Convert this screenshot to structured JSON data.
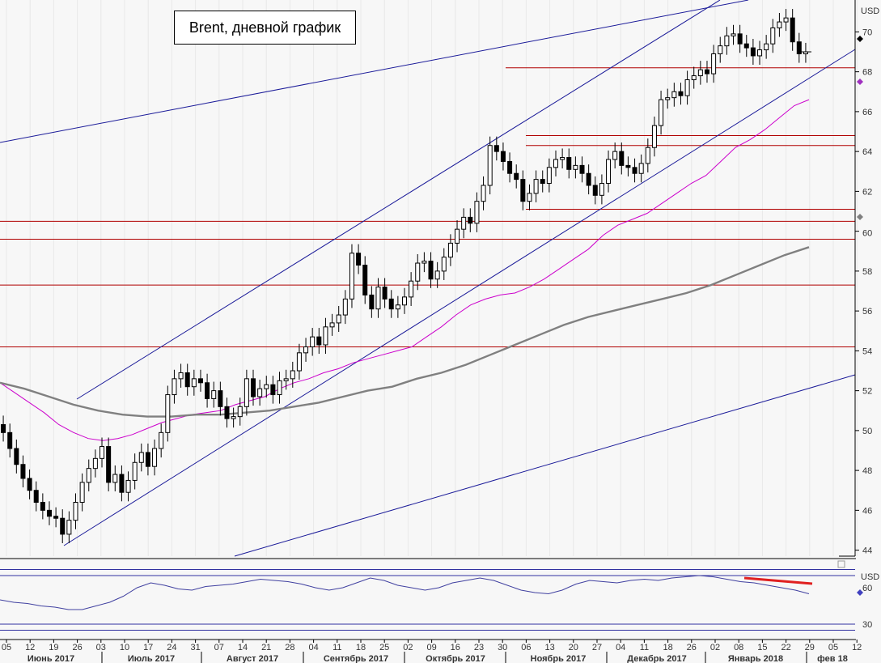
{
  "title": "Brent, дневной график",
  "currency_label": "USD",
  "rsi_currency_label": "USD",
  "chart_data": [
    {
      "type": "candlestick",
      "title": "Brent, дневной график",
      "ylabel": "USD",
      "ylim": [
        43.7,
        71.6
      ],
      "yticks": [
        44,
        46,
        48,
        50,
        52,
        54,
        56,
        58,
        60,
        62,
        64,
        66,
        68,
        70
      ],
      "highlighted_tick": 60,
      "current_price": 69.0,
      "x_range": [
        "2017-06-05",
        "2018-02-14"
      ],
      "day_ticks": [
        "05",
        "12",
        "19",
        "26",
        "03",
        "10",
        "17",
        "24",
        "31",
        "07",
        "14",
        "21",
        "28",
        "04",
        "11",
        "18",
        "25",
        "02",
        "09",
        "16",
        "23",
        "30",
        "06",
        "13",
        "20",
        "27",
        "04",
        "11",
        "18",
        "26",
        "02",
        "08",
        "15",
        "22",
        "29",
        "05",
        "12"
      ],
      "months": [
        "Июнь 2017",
        "Июль 2017",
        "Август 2017",
        "Сентябрь 2017",
        "Октябрь 2017",
        "Ноябрь 2017",
        "Декабрь 2017",
        "Январь 2018",
        "фев 18"
      ],
      "series": [
        {
          "name": "",
          "kind": "close",
          "values": [
            49.9,
            49.1,
            48.3,
            47.6,
            47.0,
            46.4,
            46.0,
            45.7,
            45.6,
            44.8,
            45.5,
            46.4,
            47.4,
            48.1,
            48.6,
            49.2,
            47.4,
            47.8,
            46.9,
            47.5,
            48.4,
            48.9,
            48.2,
            49.1,
            49.9,
            51.8,
            52.6,
            52.9,
            52.2,
            52.6,
            52.4,
            51.6,
            52.0,
            51.2,
            50.6,
            50.7,
            51.2,
            52.6,
            51.7,
            52.1,
            52.3,
            51.8,
            52.5,
            52.6,
            53.0,
            53.9,
            54.2,
            54.7,
            54.3,
            55.2,
            55.4,
            55.8,
            56.6,
            58.9,
            58.3,
            56.8,
            56.1,
            57.2,
            56.6,
            56.1,
            56.3,
            56.7,
            57.5,
            58.4,
            58.5,
            57.6,
            58.0,
            58.7,
            59.4,
            60.1,
            60.7,
            60.4,
            61.5,
            62.3,
            64.3,
            64.0,
            63.5,
            62.9,
            62.6,
            61.5,
            61.9,
            62.6,
            62.4,
            63.2,
            63.6,
            63.7,
            63.1,
            63.3,
            62.9,
            62.3,
            61.8,
            62.4,
            63.6,
            64.0,
            63.3,
            63.2,
            62.9,
            63.4,
            64.2,
            65.3,
            66.6,
            66.7,
            67.0,
            66.8,
            67.6,
            67.8,
            68.1,
            67.9,
            68.9,
            69.3,
            69.8,
            69.9,
            69.4,
            69.2,
            68.8,
            69.1,
            69.4,
            70.2,
            70.5,
            70.7,
            69.5,
            68.9,
            69.0
          ]
        },
        {
          "name": "",
          "kind": "moving-average",
          "color": "#cc00cc",
          "values": [
            52.4,
            51.9,
            51.4,
            50.9,
            50.3,
            49.9,
            49.6,
            49.5,
            49.6,
            49.8,
            50.1,
            50.4,
            50.6,
            50.8,
            50.9,
            51.0,
            51.3,
            51.5,
            51.7,
            52.1,
            52.4,
            52.6,
            52.9,
            53.1,
            53.4,
            53.6,
            53.8,
            54.0,
            54.2,
            54.7,
            55.2,
            55.8,
            56.3,
            56.6,
            56.8,
            56.9,
            57.2,
            57.6,
            58.1,
            58.6,
            59.1,
            59.8,
            60.3,
            60.6,
            60.9,
            61.4,
            61.9,
            62.4,
            62.8,
            63.5,
            64.2,
            64.6,
            65.1,
            65.7,
            66.3,
            66.6
          ]
        },
        {
          "name": "",
          "kind": "moving-average",
          "color": "#808080",
          "values": [
            52.4,
            52.1,
            51.7,
            51.3,
            51.0,
            50.8,
            50.7,
            50.7,
            50.8,
            50.8,
            50.9,
            51.0,
            51.2,
            51.4,
            51.7,
            52.0,
            52.2,
            52.6,
            52.9,
            53.3,
            53.8,
            54.3,
            54.8,
            55.3,
            55.7,
            56.0,
            56.3,
            56.6,
            56.9,
            57.3,
            57.8,
            58.3,
            58.8,
            59.2
          ]
        }
      ],
      "horizontal_levels": [
        68.2,
        64.8,
        64.3,
        61.1,
        60.5,
        59.6,
        57.3,
        54.2
      ]
    },
    {
      "type": "line",
      "title": "",
      "ylabel": "USD",
      "ylim": [
        20,
        80
      ],
      "yticks": [
        30,
        60
      ],
      "current_value": 55,
      "levels": [
        30,
        70
      ],
      "series": [
        {
          "name": "",
          "color": "#4040a0",
          "values": [
            50,
            48,
            47,
            45,
            44,
            42,
            42,
            45,
            48,
            53,
            60,
            64,
            62,
            59,
            58,
            61,
            62,
            63,
            65,
            67,
            66,
            65,
            63,
            60,
            58,
            60,
            64,
            68,
            66,
            62,
            60,
            58,
            60,
            64,
            66,
            68,
            66,
            62,
            58,
            56,
            55,
            58,
            63,
            66,
            65,
            64,
            66,
            67,
            66,
            68,
            69,
            70,
            69,
            67,
            65,
            64,
            62,
            60,
            58,
            55
          ]
        }
      ]
    }
  ]
}
